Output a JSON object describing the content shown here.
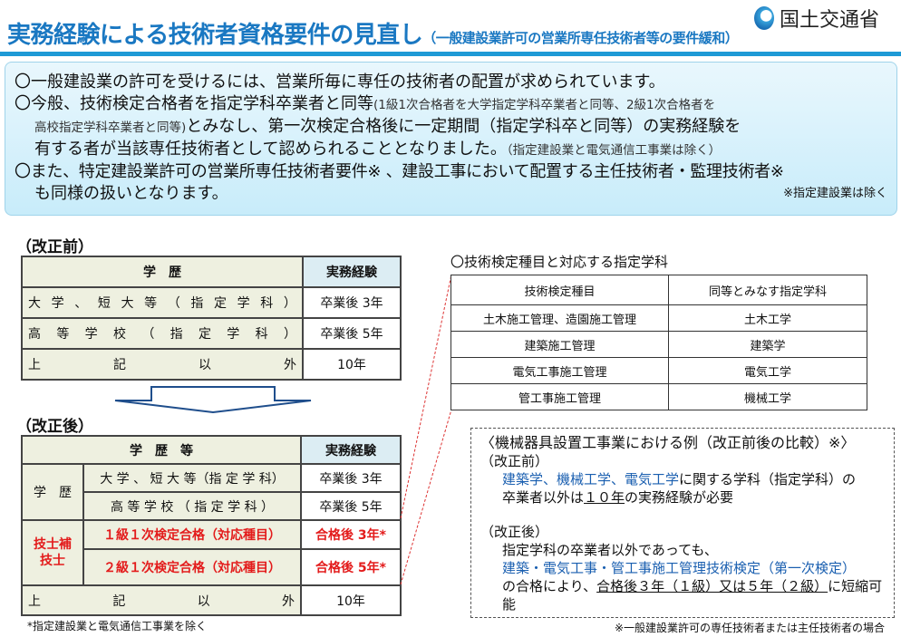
{
  "header": {
    "title": "実務経験による技術者資格要件の見直し",
    "subtitle": "（一般建設業許可の営業所専任技術者等の要件緩和）",
    "logo_text": "国土交通省"
  },
  "info": {
    "line1": "〇一般建設業の許可を受けるには、営業所毎に専任の技術者の配置が求められています。",
    "line2a": "〇今般、技術検定合格者を指定学科卒業者と同等",
    "line2b": "(1級1次合格者を大学指定学科卒業者と同等、2級1次合格者を",
    "line3a": "高校指定学科卒業者と同等)",
    "line3b": "とみなし、第一次検定合格後に一定期間（指定学科卒と同等）の実務経験を",
    "line4a": "有する者が当該専任技術者として認められることとなりました。",
    "line4b": "（指定建設業と電気通信工事業は除く）",
    "line5": "〇また、特定建設業許可の営業所専任技術者要件※ 、建設工事において配置する主任技術者・監理技術者※",
    "line6": "も同様の扱いとなります。",
    "note": "※指定建設業は除く"
  },
  "before": {
    "label": "（改正前）",
    "head": [
      "学　歴",
      "実務経験"
    ],
    "rows": [
      [
        "大",
        "学",
        "、",
        "短",
        "大",
        "等",
        "（",
        "指",
        "定",
        "学",
        "科",
        "）"
      ],
      [
        "高",
        "等",
        "学",
        "校",
        "（",
        "指",
        "定",
        "学",
        "科",
        "）"
      ],
      [
        "上",
        "記",
        "以",
        "外"
      ]
    ],
    "values": [
      "卒業後 3年",
      "卒業後 5年",
      "10年"
    ]
  },
  "after": {
    "label": "（改正後）",
    "head": [
      "学　歴　等",
      "実務経験"
    ],
    "group1": "学　歴",
    "group2": "技士補\n技士",
    "rows": [
      "大 学 、 短 大 等（指 定 学 科）",
      "高 等 学 校 （ 指 定 学 科 ）",
      "１級１次検定合格（対応種目）",
      "２級１次検定合格（対応種目）"
    ],
    "other": [
      "上",
      "記",
      "以",
      "外"
    ],
    "values": [
      "卒業後 3年",
      "卒業後 5年",
      "合格後 3年*",
      "合格後 5年*",
      "10年"
    ],
    "footnote": "*指定建設業と電気通信工事業を除く"
  },
  "subjects": {
    "heading": "〇技術検定種目と対応する指定学科",
    "head": [
      "技術検定種目",
      "同等とみなす指定学科"
    ],
    "rows": [
      [
        "土木施工管理、造園施工管理",
        "土木工学"
      ],
      [
        "建築施工管理",
        "建築学"
      ],
      [
        "電気工事施工管理",
        "電気工学"
      ],
      [
        "管工事施工管理",
        "機械工学"
      ]
    ]
  },
  "example": {
    "title": "〈機械器具設置工事業における例（改正前後の比較）※〉",
    "before_label": "（改正前）",
    "b1_blue": "建築学、機械工学、電気工学",
    "b1_rest": "に関する学科（指定学科）の",
    "b2a": "卒業者以外は",
    "b2u": "１０年",
    "b2b": "の実務経験が必要",
    "after_label": "（改正後）",
    "a1": "指定学科の卒業者以外であっても、",
    "a2": "建築・電気工事・管工事施工管理技術検定（第一次検定）",
    "a3a": "の合格により、",
    "a3u": "合格後３年（１級）又は５年（２級）",
    "a3b": "に短縮可能",
    "note": "※一般建設業許可の専任技術者または主任技術者の場合"
  },
  "colors": {
    "title": "#1a78c2",
    "accent_red": "#e31b1b",
    "box_bg": "#d6f1fc"
  }
}
